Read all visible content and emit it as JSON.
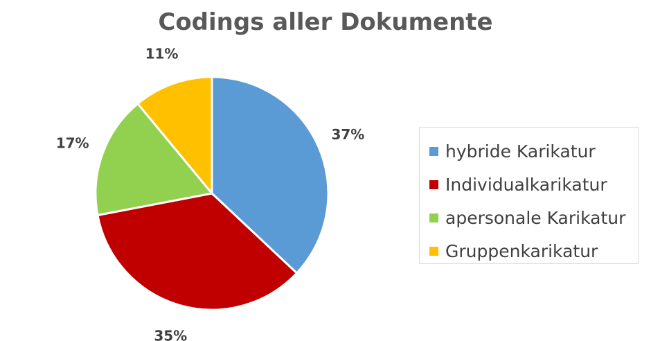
{
  "chart_data": {
    "type": "pie",
    "title": "Codings aller Dokumente",
    "categories": [
      "hybride Karikatur",
      "Individualkarikatur",
      "apersonale Karikatur",
      "Gruppenkarikatur"
    ],
    "values": [
      37,
      35,
      17,
      11
    ],
    "value_labels": [
      "37%",
      "35%",
      "17%",
      "11%"
    ],
    "colors": [
      "#5B9BD5",
      "#C00000",
      "#92D050",
      "#FFC000"
    ],
    "legend_position": "right"
  }
}
